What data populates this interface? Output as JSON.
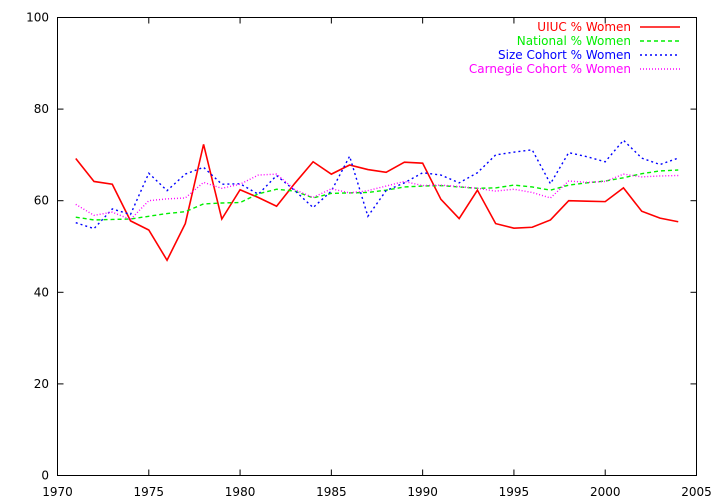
{
  "chart_data": {
    "type": "line",
    "title": "",
    "xlabel": "",
    "ylabel": "",
    "xlim": [
      1970,
      2005
    ],
    "ylim": [
      0,
      100
    ],
    "xticks": [
      1970,
      1975,
      1980,
      1985,
      1990,
      1995,
      2000,
      2005
    ],
    "yticks": [
      0,
      20,
      40,
      60,
      80,
      100
    ],
    "grid": false,
    "legend_position": "top-right",
    "x": [
      1971,
      1972,
      1973,
      1974,
      1975,
      1976,
      1977,
      1978,
      1979,
      1980,
      1981,
      1982,
      1983,
      1984,
      1985,
      1986,
      1987,
      1988,
      1989,
      1990,
      1991,
      1992,
      1993,
      1994,
      1995,
      1996,
      1997,
      1998,
      1999,
      2000,
      2001,
      2002,
      2003,
      2004
    ],
    "series": [
      {
        "name": "UIUC % Women",
        "color": "#ff0000",
        "dash": "solid",
        "values": [
          69.2,
          64.2,
          63.6,
          55.6,
          53.6,
          47.0,
          55.0,
          72.3,
          56.0,
          62.4,
          60.7,
          58.8,
          63.8,
          68.5,
          65.8,
          67.8,
          66.8,
          66.2,
          68.4,
          68.2,
          60.3,
          56.1,
          62.3,
          55.0,
          54.0,
          54.2,
          55.8,
          60.0,
          59.9,
          59.8,
          62.8,
          57.7,
          56.2,
          55.4
        ]
      },
      {
        "name": "National % Women",
        "color": "#00ee00",
        "dash": "dashed",
        "values": [
          56.4,
          55.8,
          55.9,
          56.0,
          56.6,
          57.2,
          57.6,
          59.3,
          59.5,
          59.6,
          61.5,
          62.5,
          62.1,
          60.6,
          61.6,
          61.7,
          61.8,
          62.3,
          63.0,
          63.2,
          63.3,
          63.0,
          62.7,
          62.8,
          63.4,
          63.0,
          62.3,
          63.4,
          63.9,
          64.3,
          65.0,
          65.9,
          66.5,
          66.7
        ]
      },
      {
        "name": "Size Cohort % Women",
        "color": "#0000ff",
        "dash": "dotted",
        "values": [
          55.2,
          53.9,
          58.2,
          57.0,
          66.0,
          62.2,
          65.8,
          67.3,
          63.6,
          63.7,
          61.4,
          65.5,
          62.2,
          58.5,
          62.1,
          69.7,
          56.6,
          62.2,
          63.9,
          66.1,
          65.6,
          63.9,
          66.1,
          70.0,
          70.6,
          71.1,
          63.7,
          70.5,
          69.6,
          68.5,
          73.2,
          69.3,
          67.9,
          69.3
        ]
      },
      {
        "name": "Carnegie Cohort % Women",
        "color": "#ff00ff",
        "dash": "dotted-fine",
        "values": [
          59.2,
          56.8,
          57.5,
          55.9,
          60.0,
          60.4,
          60.6,
          64.0,
          62.7,
          63.6,
          65.6,
          65.8,
          62.4,
          60.7,
          62.6,
          61.7,
          62.2,
          63.2,
          64.2,
          63.3,
          63.4,
          63.1,
          62.7,
          62.1,
          62.5,
          61.8,
          60.6,
          64.3,
          64.0,
          64.2,
          65.8,
          65.2,
          65.4,
          65.5
        ]
      }
    ]
  }
}
